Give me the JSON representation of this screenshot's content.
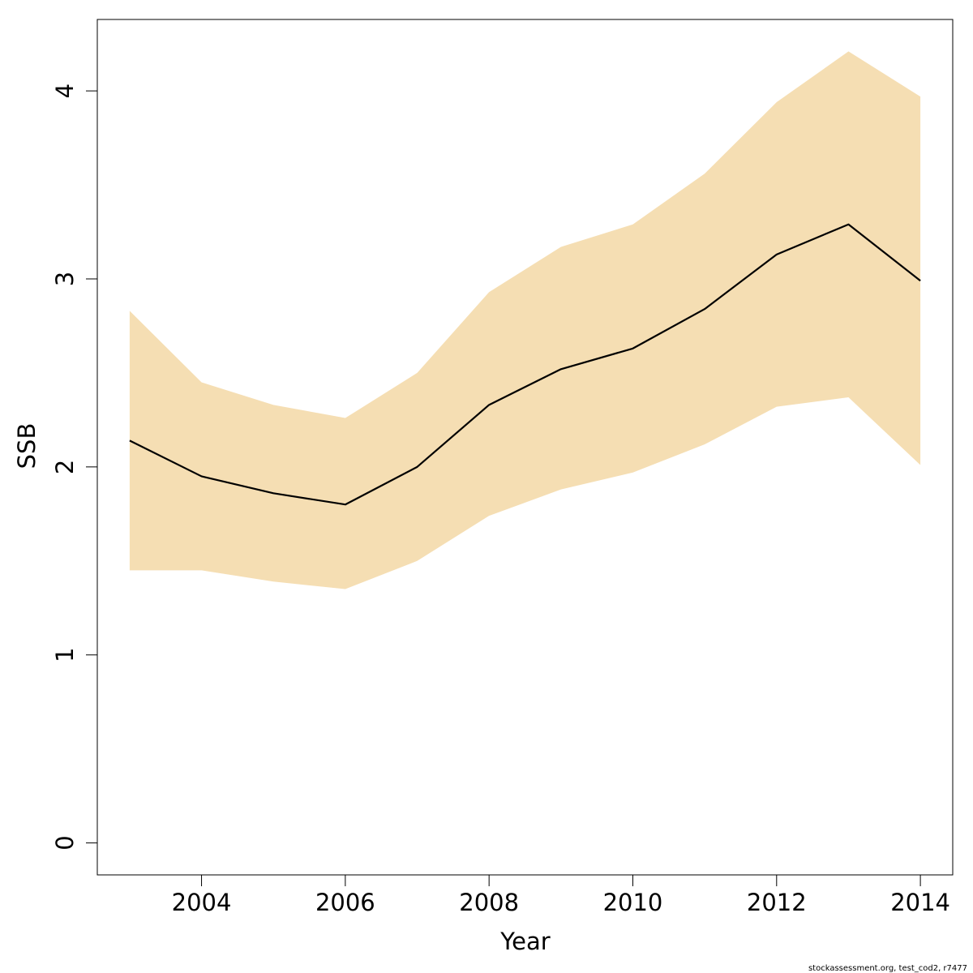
{
  "chart_data": {
    "type": "area",
    "title": "",
    "xlabel": "Year",
    "ylabel": "SSB",
    "x": [
      2003,
      2004,
      2005,
      2006,
      2007,
      2008,
      2009,
      2010,
      2011,
      2012,
      2013,
      2014
    ],
    "series": [
      {
        "values": [
          2.14,
          1.95,
          1.86,
          1.8,
          2.0,
          2.33,
          2.52,
          2.63,
          2.84,
          3.13,
          3.29,
          2.99
        ]
      }
    ],
    "band_upper": [
      2.83,
      2.45,
      2.33,
      2.26,
      2.5,
      2.93,
      3.17,
      3.29,
      3.56,
      3.94,
      4.21,
      3.97
    ],
    "band_lower": [
      1.45,
      1.45,
      1.39,
      1.35,
      1.5,
      1.74,
      1.88,
      1.97,
      2.12,
      2.32,
      2.37,
      2.01
    ],
    "xlim": [
      2002.55,
      2014.45
    ],
    "ylim": [
      -0.17,
      4.38
    ],
    "xticks": [
      2004,
      2006,
      2008,
      2010,
      2012,
      2014
    ],
    "yticks": [
      0,
      1,
      2,
      3,
      4
    ],
    "grid": false,
    "colors": {
      "band": "#f5deb3",
      "line": "#000000",
      "axis": "#000000"
    }
  },
  "footnote": "stockassessment.org, test_cod2, r7477"
}
